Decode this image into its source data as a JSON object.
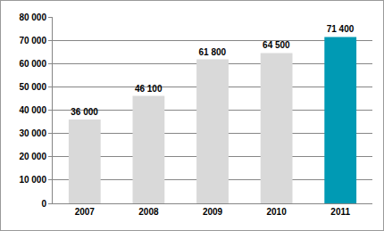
{
  "chart_data": {
    "type": "bar",
    "categories": [
      "2007",
      "2008",
      "2009",
      "2010",
      "2011"
    ],
    "values": [
      36000,
      46100,
      61800,
      64500,
      71400
    ],
    "value_labels": [
      "36 000",
      "46 100",
      "61 800",
      "64 500",
      "71 400"
    ],
    "colors": [
      "#d9d9d9",
      "#d9d9d9",
      "#d9d9d9",
      "#d9d9d9",
      "#009ab4"
    ],
    "ylim": [
      0,
      80000
    ],
    "yticks": [
      0,
      {
        "value": 10000,
        "label": "10 000"
      },
      {
        "value": 20000,
        "label": "20 000"
      },
      {
        "value": 30000,
        "label": "30 000"
      },
      {
        "value": 40000,
        "label": "40 000"
      },
      {
        "value": 50000,
        "label": "50 000"
      },
      {
        "value": 60000,
        "label": "60 000"
      },
      {
        "value": 70000,
        "label": "70 000"
      },
      {
        "value": 80000,
        "label": "80 000"
      }
    ],
    "grid": true,
    "data_labels": true
  }
}
